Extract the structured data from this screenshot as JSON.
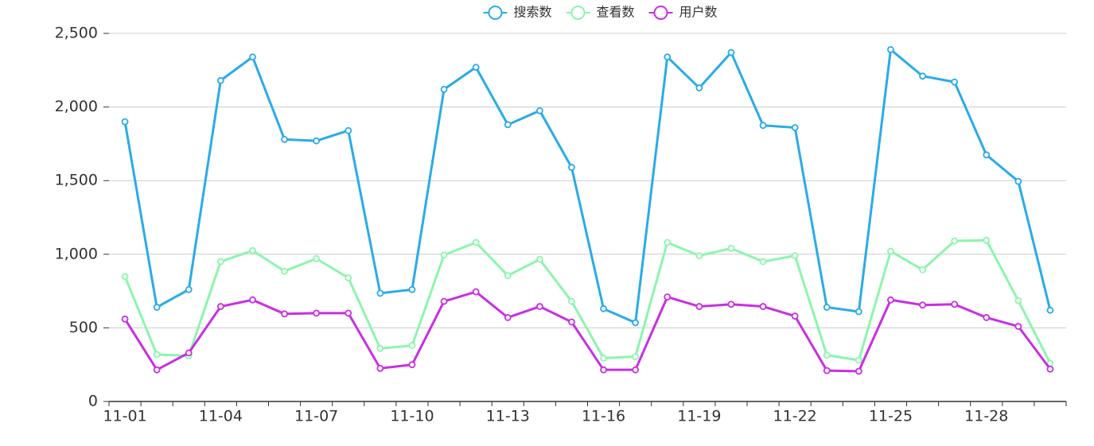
{
  "chart_data": {
    "type": "line",
    "categories": [
      "11-01",
      null,
      null,
      "11-04",
      null,
      null,
      "11-07",
      null,
      null,
      "11-10",
      null,
      null,
      "11-13",
      null,
      null,
      "11-16",
      null,
      null,
      "11-19",
      null,
      null,
      "11-22",
      null,
      null,
      "11-25",
      null,
      null,
      "11-28",
      null,
      null
    ],
    "series": [
      {
        "name": "搜索数",
        "color": "#29abe8",
        "values": [
          1900,
          640,
          760,
          2180,
          2340,
          1780,
          1770,
          1840,
          735,
          760,
          2120,
          2270,
          1880,
          1975,
          1590,
          630,
          535,
          2340,
          2130,
          2370,
          1875,
          1860,
          640,
          610,
          2390,
          2210,
          2170,
          1675,
          1495,
          620
        ]
      },
      {
        "name": "查看数",
        "color": "#8cf5ae",
        "values": [
          848,
          319,
          310,
          950,
          1025,
          885,
          970,
          840,
          360,
          380,
          995,
          1080,
          855,
          965,
          680,
          295,
          305,
          1080,
          990,
          1040,
          950,
          990,
          315,
          280,
          1020,
          895,
          1090,
          1095,
          685,
          260
        ]
      },
      {
        "name": "用户数",
        "color": "#c92ee4",
        "values": [
          560,
          215,
          330,
          645,
          690,
          595,
          600,
          600,
          225,
          250,
          680,
          745,
          570,
          645,
          540,
          215,
          215,
          710,
          645,
          660,
          645,
          580,
          210,
          205,
          690,
          655,
          660,
          570,
          510,
          220
        ]
      }
    ],
    "ylim": [
      0,
      2500
    ],
    "yticks": [
      0,
      500,
      {
        "value": 1000,
        "label": "1,000"
      },
      {
        "value": 1500,
        "label": "1,500"
      },
      {
        "value": 2000,
        "label": "2,000"
      },
      {
        "value": 2500,
        "label": "2,500"
      }
    ],
    "grid": true
  }
}
